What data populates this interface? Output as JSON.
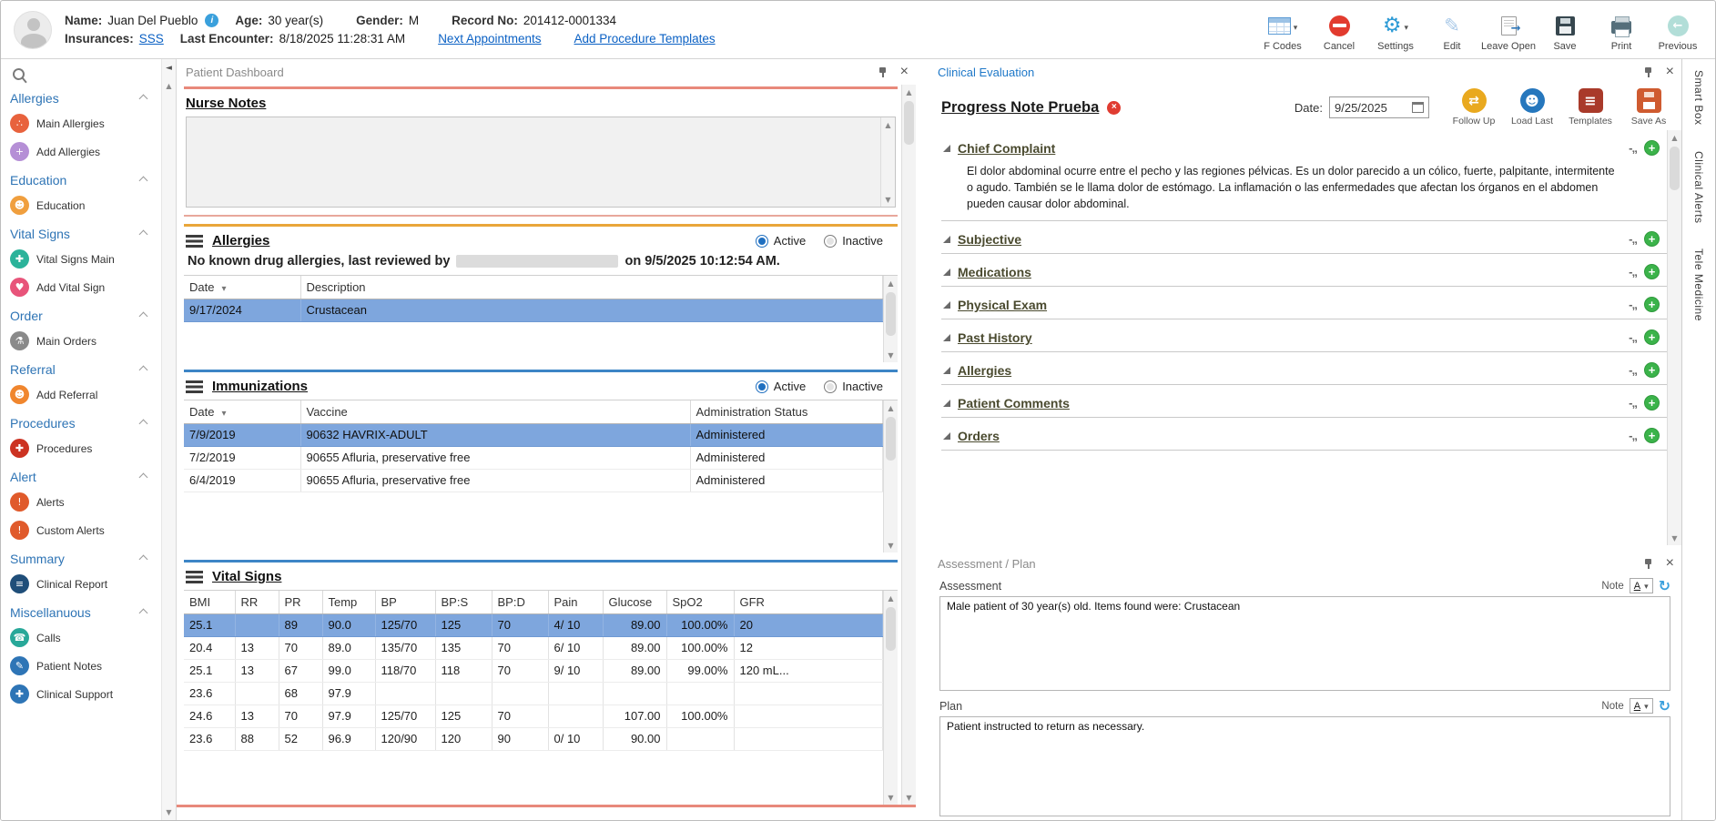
{
  "colors": {
    "accent_blue": "#2e75b6",
    "link_blue": "#0b61c4",
    "selection_blue": "#7ea6dd",
    "section_red": "#e8897b",
    "section_gold": "#e9a63a",
    "section_blue": "#3d85c6",
    "plus_green": "#3bb34a",
    "delete_red": "#e03c31"
  },
  "header": {
    "patient": {
      "name_label": "Name:",
      "name": "Juan Del Pueblo",
      "age_label": "Age:",
      "age": "30 year(s)",
      "gender_label": "Gender:",
      "gender": "M",
      "record_label": "Record No:",
      "record": "201412-0001334",
      "insurances_label": "Insurances:",
      "insurances": "SSS",
      "last_encounter_label": "Last Encounter:",
      "last_encounter": "8/18/2025 11:28:31 AM",
      "next_appointments_link": "Next Appointments",
      "add_procedure_templates_link": "Add Procedure Templates"
    },
    "toolbar": [
      {
        "label": "F Codes",
        "icon": "table-grid-icon"
      },
      {
        "label": "Cancel",
        "icon": "no-entry-icon"
      },
      {
        "label": "Settings",
        "icon": "gear-icon"
      },
      {
        "label": "Edit",
        "icon": "pencil-icon"
      },
      {
        "label": "Leave Open",
        "icon": "document-arrow-icon"
      },
      {
        "label": "Save",
        "icon": "floppy-icon"
      },
      {
        "label": "Print",
        "icon": "printer-icon"
      },
      {
        "label": "Previous",
        "icon": "back-arrow-icon"
      }
    ]
  },
  "sidebar": {
    "sections": [
      {
        "title": "Allergies",
        "items": [
          {
            "label": "Main Allergies",
            "icon": "main-allergies-icon",
            "color": "#e8623d",
            "glyph": "∴"
          },
          {
            "label": "Add Allergies",
            "icon": "add-allergies-icon",
            "color": "#b58fd6",
            "glyph": "+"
          }
        ]
      },
      {
        "title": "Education",
        "items": [
          {
            "label": "Education",
            "icon": "education-icon",
            "color": "#f09f3e",
            "glyph": "☻"
          }
        ]
      },
      {
        "title": "Vital Signs",
        "items": [
          {
            "label": "Vital Signs Main",
            "icon": "vital-signs-icon",
            "color": "#2bb39a",
            "glyph": "✚"
          },
          {
            "label": "Add Vital Sign",
            "icon": "add-vital-sign-icon",
            "color": "#e8547a",
            "glyph": "♥"
          }
        ]
      },
      {
        "title": "Order",
        "items": [
          {
            "label": "Main Orders",
            "icon": "main-orders-icon",
            "color": "#8a8a8a",
            "glyph": "⚗"
          }
        ]
      },
      {
        "title": "Referral",
        "items": [
          {
            "label": "Add Referral",
            "icon": "add-referral-icon",
            "color": "#f0862e",
            "glyph": "☻"
          }
        ]
      },
      {
        "title": "Procedures",
        "items": [
          {
            "label": "Procedures",
            "icon": "procedures-icon",
            "color": "#cc3322",
            "glyph": "✚"
          }
        ]
      },
      {
        "title": "Alert",
        "items": [
          {
            "label": "Alerts",
            "icon": "alerts-icon",
            "color": "#e05a2b",
            "glyph": "!"
          },
          {
            "label": "Custom Alerts",
            "icon": "custom-alerts-icon",
            "color": "#e05a2b",
            "glyph": "!"
          }
        ]
      },
      {
        "title": "Summary",
        "items": [
          {
            "label": "Clinical Report",
            "icon": "clinical-report-icon",
            "color": "#1f4e79",
            "glyph": "≡"
          }
        ]
      },
      {
        "title": "Miscellanuous",
        "items": [
          {
            "label": "Calls",
            "icon": "calls-icon",
            "color": "#28a899",
            "glyph": "☎"
          },
          {
            "label": "Patient Notes",
            "icon": "patient-notes-icon",
            "color": "#2e75b6",
            "glyph": "✎"
          },
          {
            "label": "Clinical Support",
            "icon": "clinical-support-icon",
            "color": "#2e75b6",
            "glyph": "✚"
          }
        ]
      }
    ]
  },
  "dashboard": {
    "title": "Patient Dashboard",
    "nurse_notes": {
      "title": "Nurse Notes",
      "content": ""
    },
    "allergies": {
      "title": "Allergies",
      "filter": {
        "active": "Active",
        "inactive": "Inactive",
        "selected": "Active"
      },
      "review_prefix": "No known drug allergies, last reviewed by",
      "review_suffix": "on 9/5/2025 10:12:54 AM.",
      "columns": [
        "Date",
        "Description"
      ],
      "rows": [
        [
          "9/17/2024",
          "Crustacean"
        ]
      ]
    },
    "immunizations": {
      "title": "Immunizations",
      "filter": {
        "active": "Active",
        "inactive": "Inactive",
        "selected": "Active"
      },
      "columns": [
        "Date",
        "Vaccine",
        "Administration Status"
      ],
      "rows": [
        [
          "7/9/2019",
          "90632 HAVRIX-ADULT",
          "Administered"
        ],
        [
          "7/2/2019",
          "90655 Afluria, preservative free",
          "Administered"
        ],
        [
          "6/4/2019",
          "90655 Afluria, preservative free",
          "Administered"
        ]
      ]
    },
    "vital_signs": {
      "title": "Vital Signs",
      "columns": [
        "BMI",
        "RR",
        "PR",
        "Temp",
        "BP",
        "BP:S",
        "BP:D",
        "Pain",
        "Glucose",
        "SpO2",
        "GFR"
      ],
      "rows": [
        [
          "25.1",
          "",
          "89",
          "90.0",
          "125/70",
          "125",
          "70",
          "4/ 10",
          "89.00",
          "100.00%",
          "20"
        ],
        [
          "20.4",
          "13",
          "70",
          "89.0",
          "135/70",
          "135",
          "70",
          "6/ 10",
          "89.00",
          "100.00%",
          "12"
        ],
        [
          "25.1",
          "13",
          "67",
          "99.0",
          "118/70",
          "118",
          "70",
          "9/ 10",
          "89.00",
          "99.00%",
          "120 mL..."
        ],
        [
          "23.6",
          "",
          "68",
          "97.9",
          "",
          "",
          "",
          "",
          "",
          "",
          ""
        ],
        [
          "24.6",
          "13",
          "70",
          "97.9",
          "125/70",
          "125",
          "70",
          "",
          "107.00",
          "100.00%",
          ""
        ],
        [
          "23.6",
          "88",
          "52",
          "96.9",
          "120/90",
          "120",
          "90",
          "0/ 10",
          "90.00",
          "",
          ""
        ]
      ]
    }
  },
  "clinical_evaluation": {
    "title": "Clinical Evaluation",
    "note_title": "Progress Note Prueba",
    "date_label": "Date:",
    "date_value": "9/25/2025",
    "buttons": [
      {
        "label": "Follow Up",
        "icon": "follow-up-icon"
      },
      {
        "label": "Load Last",
        "icon": "load-last-icon"
      },
      {
        "label": "Templates",
        "icon": "templates-icon"
      },
      {
        "label": "Save As",
        "icon": "save-as-icon"
      }
    ],
    "sections": [
      {
        "label": "Chief Complaint",
        "content": "El dolor abdominal ocurre entre el pecho y las regiones pélvicas. Es un dolor parecido a un cólico, fuerte, palpitante, intermitente o agudo. También se le llama dolor de estómago. La inflamación o las enfermedades que afectan los órganos en el abdomen pueden causar dolor abdominal."
      },
      {
        "label": "Subjective",
        "content": ""
      },
      {
        "label": "Medications",
        "content": ""
      },
      {
        "label": "Physical Exam",
        "content": ""
      },
      {
        "label": "Past History",
        "content": ""
      },
      {
        "label": "Allergies",
        "content": ""
      },
      {
        "label": "Patient Comments",
        "content": ""
      },
      {
        "label": "Orders",
        "content": ""
      }
    ]
  },
  "assessment_plan": {
    "title": "Assessment / Plan",
    "assessment_label": "Assessment",
    "plan_label": "Plan",
    "note_label": "Note",
    "note_selector": "A",
    "assessment_text": "Male patient of 30 year(s) old. Items found were:  Crustacean",
    "plan_text": "Patient instructed to return as necessary."
  },
  "side_tabs": [
    "Smart Box",
    "Clinical Alerts",
    "Tele Medicine"
  ]
}
